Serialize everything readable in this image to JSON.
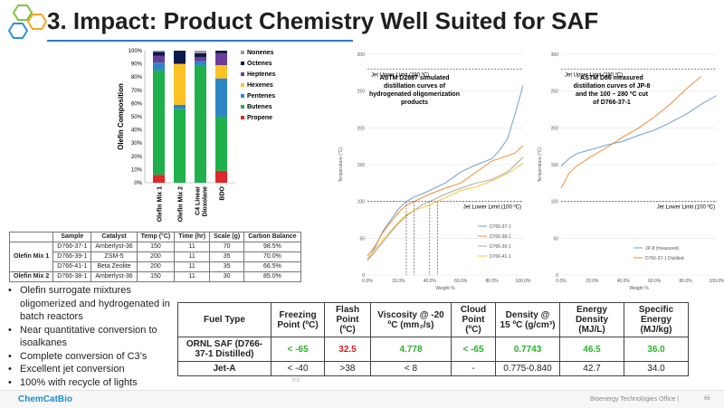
{
  "slide": {
    "title": "3. Impact: Product Chemistry Well Suited for SAF",
    "bullets": [
      "Olefin surrogate mixtures oligomerized and hydrogenated in batch reactors",
      "Near quantitative conversion to isoalkanes",
      "Complete conversion of C3’s",
      "Excellent jet conversion",
      "100% with recycle of lights"
    ],
    "table_note": "TCF",
    "footer": {
      "logo": "ChemCatBio",
      "office": "Bioenergy Technologies Office  |",
      "page": "66"
    },
    "colors": {
      "title_rule": "#2f77c8",
      "green_value": "#2bb02b",
      "red_value": "#d42020"
    },
    "icons": [
      "hexagon-logo-icon"
    ]
  },
  "sample_table": {
    "headers": [
      "",
      "Sample",
      "Catalyst",
      "Temp (°C)",
      "Time (hr)",
      "Scale (g)",
      "Carbon Balance"
    ],
    "groups": [
      {
        "label": "Olefin Mix 1",
        "rows": [
          [
            "D766-37-1",
            "Amberlyst-36",
            "150",
            "11",
            "70",
            "98.5%"
          ],
          [
            "D766-39-1",
            "ZSM-5",
            "200",
            "11",
            "35",
            "70.0%"
          ],
          [
            "D766-41-1",
            "Beta Zeolite",
            "200",
            "11",
            "35",
            "66.5%"
          ]
        ]
      },
      {
        "label": "Olefin Mix 2",
        "rows": [
          [
            "D766-38-1",
            "Amberlyst-36",
            "150",
            "11",
            "30",
            "85.0%"
          ]
        ]
      }
    ]
  },
  "fuel_table": {
    "headers": [
      "Fuel Type",
      "Freezing Point (ºC)",
      "Flash Point (ºC)",
      "Viscosity @ -20 ºC (mm₂/s)",
      "Cloud Point (ºC)",
      "Density @ 15 ºC (g/cm³)",
      "Energy Density (MJ/L)",
      "Specific Energy (MJ/kg)"
    ],
    "rows": [
      {
        "name": "ORNL SAF (D766-37-1 Distilled)",
        "values": [
          "< -65",
          "32.5",
          "4.778",
          "< -65",
          "0.7743",
          "46.5",
          "36.0"
        ]
      },
      {
        "name": "Jet-A",
        "values": [
          "< -40",
          ">38",
          "< 8",
          "-",
          "0.775-0.840",
          "42.7",
          "34.0"
        ]
      }
    ]
  },
  "chart_data": [
    {
      "type": "bar",
      "stacked": true,
      "ylabel": "Olefin Composition",
      "ylim": [
        0,
        100
      ],
      "yticks": [
        "0%",
        "10%",
        "20%",
        "30%",
        "40%",
        "50%",
        "60%",
        "70%",
        "80%",
        "90%",
        "100%"
      ],
      "categories": [
        "Olefin Mix 1",
        "Olefin Mix 2",
        "C4 Linear Dioxolane",
        "BDO"
      ],
      "category_lines": [
        [
          "Olefin Mix 1"
        ],
        [
          "Olefin Mix 2"
        ],
        [
          "C4 Linear",
          "Dioxolane"
        ],
        [
          "BDO"
        ]
      ],
      "legend": "right",
      "series": [
        {
          "name": "Propene",
          "color": "#e0272a",
          "values": [
            6,
            0,
            0,
            9
          ]
        },
        {
          "name": "Butenes",
          "color": "#20b04b",
          "values": [
            79,
            56,
            89,
            41
          ]
        },
        {
          "name": "Pentenes",
          "color": "#2d86c6",
          "values": [
            6,
            3,
            3,
            29
          ]
        },
        {
          "name": "Hexenes",
          "color": "#fbc226",
          "values": [
            0,
            31,
            0,
            10
          ]
        },
        {
          "name": "Heptenes",
          "color": "#6a3d9a",
          "values": [
            5,
            0,
            3,
            9
          ]
        },
        {
          "name": "Octenes",
          "color": "#0d1b4a",
          "values": [
            3,
            10,
            3,
            2
          ]
        },
        {
          "name": "Nonenes",
          "color": "#9a9a9a",
          "values": [
            1,
            0,
            2,
            0
          ]
        }
      ]
    },
    {
      "type": "line",
      "title": "ASTM D2887 simulated distillation curves of hydrogenated oligomerization products",
      "title_lines": [
        "ASTM D2887 simulated",
        "distillation curves of",
        "hydrogenated oligomerization",
        "products"
      ],
      "xlabel": "Weight %",
      "ylabel": "Temperature (°C)",
      "xlim": [
        0,
        100
      ],
      "ylim": [
        0,
        300
      ],
      "xticks": [
        "0.0%",
        "20.0%",
        "40.0%",
        "60.0%",
        "80.0%",
        "100.0%"
      ],
      "yticks": [
        "0",
        "50",
        "100",
        "150",
        "200",
        "250",
        "300"
      ],
      "upper_limit": {
        "y": 280,
        "label": "Jet Upper Limit (280 ºC)"
      },
      "lower_limit": {
        "y": 100,
        "label": "Jet Lower Limit (100 ºC)"
      },
      "legend": "bottom-right",
      "series": [
        {
          "name": "D766-37-1",
          "color": "#6e9fd8",
          "x": [
            0,
            5,
            10,
            15,
            20,
            25,
            30,
            35,
            40,
            50,
            60,
            70,
            80,
            85,
            90,
            95,
            100
          ],
          "y": [
            20,
            38,
            60,
            75,
            90,
            100,
            106,
            110,
            115,
            125,
            140,
            150,
            158,
            170,
            185,
            220,
            258
          ]
        },
        {
          "name": "D766-38-1",
          "color": "#f28c38",
          "x": [
            0,
            5,
            10,
            15,
            20,
            25,
            30,
            40,
            50,
            60,
            70,
            80,
            90,
            95,
            100
          ],
          "y": [
            26,
            40,
            58,
            72,
            85,
            95,
            100,
            110,
            118,
            125,
            140,
            155,
            162,
            166,
            176
          ]
        },
        {
          "name": "D766-39-1",
          "color": "#a7a7a7",
          "x": [
            0,
            5,
            10,
            15,
            20,
            25,
            30,
            35,
            40,
            50,
            60,
            70,
            80,
            90,
            100
          ],
          "y": [
            20,
            32,
            45,
            58,
            70,
            80,
            88,
            95,
            100,
            110,
            118,
            125,
            130,
            140,
            160
          ]
        },
        {
          "name": "D766-41-1",
          "color": "#f9c531",
          "x": [
            0,
            5,
            10,
            15,
            20,
            25,
            30,
            40,
            50,
            60,
            70,
            80,
            90,
            100
          ],
          "y": [
            22,
            35,
            48,
            60,
            72,
            82,
            88,
            95,
            105,
            115,
            120,
            128,
            138,
            152
          ]
        }
      ]
    },
    {
      "type": "line",
      "title": "ASTM D86 measured distillation curves of JP-8 and the 100 – 280 ºC cut of D766-37-1",
      "title_lines": [
        "ASTM D86 measured",
        "distillation curves of JP-8",
        "and the  100 – 280 ºC cut",
        "of D766-37-1"
      ],
      "xlabel": "Weight %",
      "ylabel": "Temperature (°C)",
      "xlim": [
        0,
        100
      ],
      "ylim": [
        0,
        300
      ],
      "xticks": [
        "0.0%",
        "20.0%",
        "40.0%",
        "60.0%",
        "80.0%",
        "100.0%"
      ],
      "yticks": [
        "0",
        "50",
        "100",
        "150",
        "200",
        "250",
        "300"
      ],
      "upper_limit": {
        "y": 280,
        "label": "Jet Upper Limit (280 ºC)"
      },
      "lower_limit": {
        "y": 100,
        "label": "Jet Lower Limit (100 ºC)"
      },
      "legend": "bottom-right",
      "series": [
        {
          "name": "JP-8 (measured)",
          "color": "#6e9fd8",
          "x": [
            0,
            5,
            10,
            20,
            30,
            40,
            50,
            60,
            70,
            80,
            90,
            100
          ],
          "y": [
            148,
            158,
            165,
            171,
            177,
            182,
            190,
            197,
            207,
            218,
            232,
            244
          ]
        },
        {
          "name": "D766-37-1 Distilled",
          "color": "#f28c38",
          "x": [
            0,
            5,
            10,
            20,
            30,
            40,
            50,
            60,
            70,
            80,
            90
          ],
          "y": [
            118,
            138,
            148,
            162,
            174,
            188,
            200,
            215,
            232,
            252,
            270
          ]
        }
      ]
    }
  ]
}
